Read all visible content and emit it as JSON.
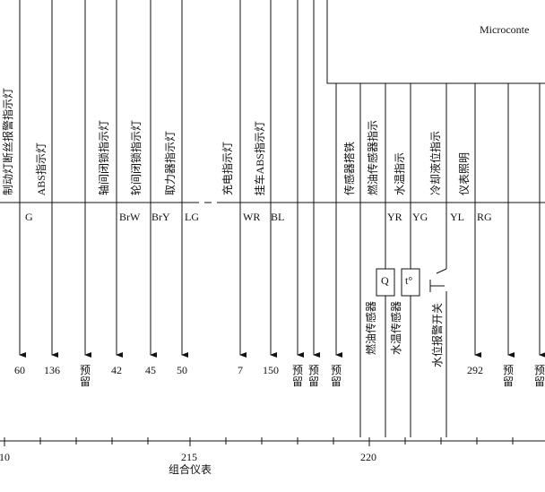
{
  "header": {
    "title": "Microconte"
  },
  "signals": [
    {
      "label": "制动灯断丝报警指示灯"
    },
    {
      "label": "ABS指示灯"
    },
    {
      "label": "轴间闭锁指示灯"
    },
    {
      "label": "轮间闭锁指示灯"
    },
    {
      "label": "取力器指示灯"
    },
    {
      "label": "充电指示灯"
    },
    {
      "label": "挂车ABS指示灯"
    },
    {
      "label": "传感器搭铁"
    },
    {
      "label": "燃油传感器指示"
    },
    {
      "label": "水温指示"
    },
    {
      "label": "冷却液位指示"
    },
    {
      "label": "仪表照明"
    }
  ],
  "wire_codes": [
    "G",
    "BrW",
    "BrY",
    "LG",
    "WR",
    "BL",
    "YR",
    "YG",
    "YL",
    "RG"
  ],
  "components": [
    {
      "symbol": "Q",
      "label": "燃油传感器"
    },
    {
      "symbol": "t°",
      "label": "水温传感器"
    },
    {
      "label": "水位报警开关"
    }
  ],
  "pins": [
    "60",
    "136",
    "预留",
    "42",
    "45",
    "50",
    "7",
    "150",
    "预留",
    "预留",
    "预留",
    "292",
    "预留",
    "预留"
  ],
  "scale": {
    "ticks": [
      "10",
      "215",
      "220"
    ],
    "label": "组合仪表"
  }
}
